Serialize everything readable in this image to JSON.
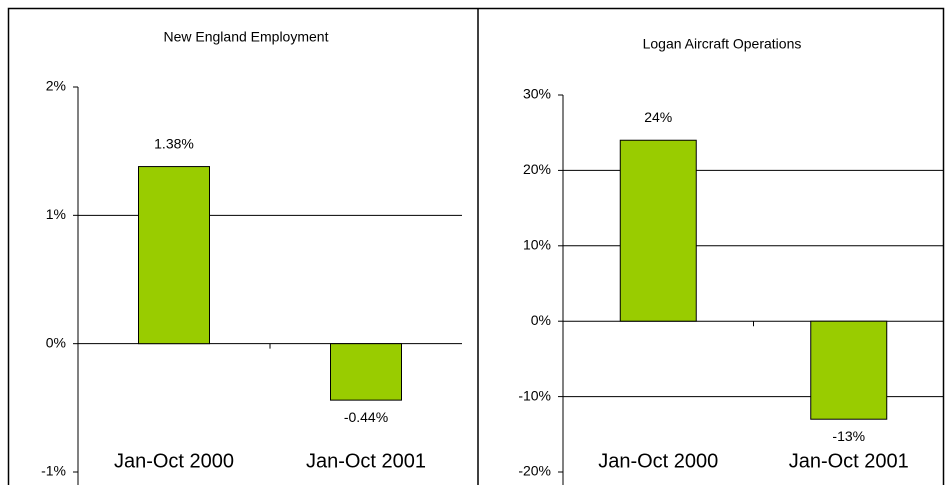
{
  "chart_data": [
    {
      "type": "bar",
      "title": "New England Employment",
      "categories": [
        "Jan-Oct 2000",
        "Jan-Oct 2001"
      ],
      "values": [
        1.38,
        -0.44
      ],
      "value_labels": [
        "1.38%",
        "-0.44%"
      ],
      "color": "#99cc00",
      "ylim": [
        -1,
        2
      ],
      "yticks": [
        {
          "value": -1,
          "label": "-1%"
        },
        {
          "value": 0,
          "label": "0%"
        },
        {
          "value": 1,
          "label": "1%"
        },
        {
          "value": 2,
          "label": "2%"
        }
      ],
      "grid": true
    },
    {
      "type": "bar",
      "title": "Logan Aircraft Operations",
      "categories": [
        "Jan-Oct 2000",
        "Jan-Oct 2001"
      ],
      "values": [
        24,
        -13
      ],
      "value_labels": [
        "24%",
        "-13%"
      ],
      "color": "#99cc00",
      "ylim": [
        -20,
        30
      ],
      "yticks": [
        {
          "value": -20,
          "label": "-20%"
        },
        {
          "value": -10,
          "label": "-10%"
        },
        {
          "value": 0,
          "label": "0%"
        },
        {
          "value": 10,
          "label": "10%"
        },
        {
          "value": 20,
          "label": "20%"
        },
        {
          "value": 30,
          "label": "30%"
        }
      ],
      "grid": true
    }
  ]
}
